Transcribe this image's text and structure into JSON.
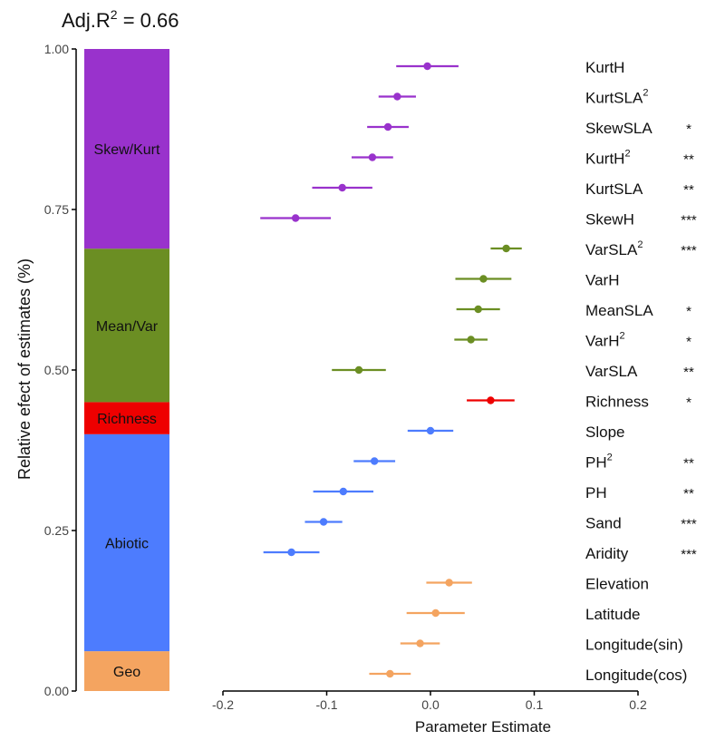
{
  "header": {
    "r2_prefix": "Adj.R",
    "r2_superscript": "2",
    "r2_suffix": " = 0.66"
  },
  "colors": {
    "skew_kurt": "#9932CC",
    "mean_var": "#6B8E23",
    "richness": "#EE0000",
    "abiotic": "#4D7CFE",
    "geo": "#F4A460",
    "axis": "#000000",
    "axis_text": "#444444"
  },
  "chart_data": [
    {
      "type": "bar",
      "stacked": true,
      "ylabel": "Relative efect of estimates (%)",
      "ylim": [
        0,
        1
      ],
      "yticks": [
        "0.00",
        "0.25",
        "0.50",
        "0.75",
        "1.00"
      ],
      "ytick_values": [
        0,
        0.25,
        0.5,
        0.75,
        1
      ],
      "segments": [
        {
          "name": "Geo",
          "from": 0.0,
          "to": 0.062,
          "color_key": "geo"
        },
        {
          "name": "Abiotic",
          "from": 0.062,
          "to": 0.4,
          "color_key": "abiotic"
        },
        {
          "name": "Richness",
          "from": 0.4,
          "to": 0.45,
          "color_key": "richness"
        },
        {
          "name": "Mean/Var",
          "from": 0.45,
          "to": 0.689,
          "color_key": "mean_var"
        },
        {
          "name": "Skew/Kurt",
          "from": 0.689,
          "to": 1.0,
          "color_key": "skew_kurt"
        }
      ]
    },
    {
      "type": "scatter",
      "subtype": "coefficient-plot",
      "xlabel": "Parameter Estimate",
      "xlim": [
        -0.2,
        0.2
      ],
      "xticks": [
        "-0.2",
        "-0.1",
        "0.0",
        "0.1",
        "0.2"
      ],
      "xtick_values": [
        -0.2,
        -0.1,
        0.0,
        0.1,
        0.2
      ],
      "points": [
        {
          "label": "KurtH",
          "sup": "",
          "sig": "",
          "est": -0.003,
          "lo": -0.033,
          "hi": 0.027,
          "group": "skew_kurt"
        },
        {
          "label": "KurtSLA",
          "sup": "2",
          "sig": "",
          "est": -0.032,
          "lo": -0.05,
          "hi": -0.014,
          "group": "skew_kurt"
        },
        {
          "label": "SkewSLA",
          "sup": "",
          "sig": "*",
          "est": -0.041,
          "lo": -0.061,
          "hi": -0.021,
          "group": "skew_kurt"
        },
        {
          "label": "KurtH",
          "sup": "2",
          "sig": "**",
          "est": -0.056,
          "lo": -0.076,
          "hi": -0.036,
          "group": "skew_kurt"
        },
        {
          "label": "KurtSLA",
          "sup": "",
          "sig": "**",
          "est": -0.085,
          "lo": -0.114,
          "hi": -0.056,
          "group": "skew_kurt"
        },
        {
          "label": "SkewH",
          "sup": "",
          "sig": "***",
          "est": -0.13,
          "lo": -0.164,
          "hi": -0.096,
          "group": "skew_kurt"
        },
        {
          "label": "VarSLA",
          "sup": "2",
          "sig": "***",
          "est": 0.073,
          "lo": 0.058,
          "hi": 0.088,
          "group": "mean_var"
        },
        {
          "label": "VarH",
          "sup": "",
          "sig": "",
          "est": 0.051,
          "lo": 0.024,
          "hi": 0.078,
          "group": "mean_var"
        },
        {
          "label": "MeanSLA",
          "sup": "",
          "sig": "*",
          "est": 0.046,
          "lo": 0.025,
          "hi": 0.067,
          "group": "mean_var"
        },
        {
          "label": "VarH",
          "sup": "2",
          "sig": "*",
          "est": 0.039,
          "lo": 0.023,
          "hi": 0.055,
          "group": "mean_var"
        },
        {
          "label": "VarSLA",
          "sup": "",
          "sig": "**",
          "est": -0.069,
          "lo": -0.095,
          "hi": -0.043,
          "group": "mean_var"
        },
        {
          "label": "Richness",
          "sup": "",
          "sig": "*",
          "est": 0.058,
          "lo": 0.035,
          "hi": 0.081,
          "group": "richness"
        },
        {
          "label": "Slope",
          "sup": "",
          "sig": "",
          "est": 0.0,
          "lo": -0.022,
          "hi": 0.022,
          "group": "abiotic"
        },
        {
          "label": "PH",
          "sup": "2",
          "sig": "**",
          "est": -0.054,
          "lo": -0.074,
          "hi": -0.034,
          "group": "abiotic"
        },
        {
          "label": "PH",
          "sup": "",
          "sig": "**",
          "est": -0.084,
          "lo": -0.113,
          "hi": -0.055,
          "group": "abiotic"
        },
        {
          "label": "Sand",
          "sup": "",
          "sig": "***",
          "est": -0.103,
          "lo": -0.121,
          "hi": -0.085,
          "group": "abiotic"
        },
        {
          "label": "Aridity",
          "sup": "",
          "sig": "***",
          "est": -0.134,
          "lo": -0.161,
          "hi": -0.107,
          "group": "abiotic"
        },
        {
          "label": "Elevation",
          "sup": "",
          "sig": "",
          "est": 0.018,
          "lo": -0.004,
          "hi": 0.04,
          "group": "geo"
        },
        {
          "label": "Latitude",
          "sup": "",
          "sig": "",
          "est": 0.005,
          "lo": -0.023,
          "hi": 0.033,
          "group": "geo"
        },
        {
          "label": "Longitude(sin)",
          "sup": "",
          "sig": "",
          "est": -0.01,
          "lo": -0.029,
          "hi": 0.009,
          "group": "geo"
        },
        {
          "label": "Longitude(cos)",
          "sup": "",
          "sig": "",
          "est": -0.039,
          "lo": -0.059,
          "hi": -0.019,
          "group": "geo"
        }
      ]
    }
  ]
}
